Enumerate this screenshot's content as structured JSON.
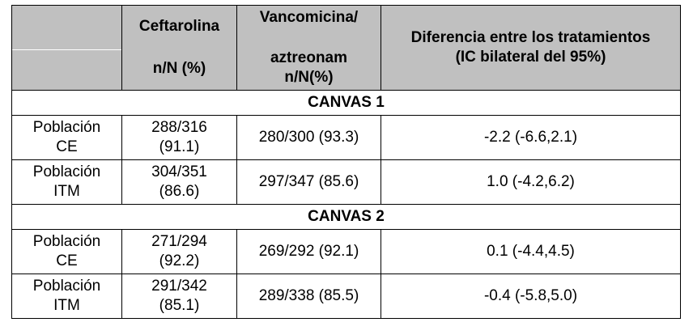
{
  "header": {
    "col_ceftarolina_line1": "Ceftarolina",
    "col_ceftarolina_line2": "n/N (%)",
    "col_vanco_line1": "Vancomicina/",
    "col_vanco_line2": "aztreonam",
    "col_vanco_line3": "n/N(%)",
    "col_diff_line1": "Diferencia entre los tratamientos",
    "col_diff_line2": "(IC bilateral del 95%)"
  },
  "sections": [
    {
      "title": "CANVAS 1",
      "rows": [
        {
          "pop_line1": "Población",
          "pop_line2": "CE",
          "cefta_line1": "288/316",
          "cefta_line2": "(91.1)",
          "vanco": "280/300 (93.3)",
          "diff": "-2.2 (-6.6,2.1)"
        },
        {
          "pop_line1": "Población",
          "pop_line2": "ITM",
          "cefta_line1": "304/351",
          "cefta_line2": "(86.6)",
          "vanco": "297/347 (85.6)",
          "diff": "1.0 (-4.2,6.2)"
        }
      ]
    },
    {
      "title": "CANVAS 2",
      "rows": [
        {
          "pop_line1": "Población",
          "pop_line2": "CE",
          "cefta_line1": "271/294",
          "cefta_line2": "(92.2)",
          "vanco": "269/292 (92.1)",
          "diff": "0.1 (-4.4,4.5)"
        },
        {
          "pop_line1": "Población",
          "pop_line2": "ITM",
          "cefta_line1": "291/342",
          "cefta_line2": "(85.1)",
          "vanco": "289/338 (85.5)",
          "diff": "-0.4 (-5.8,5.0)"
        }
      ]
    }
  ]
}
